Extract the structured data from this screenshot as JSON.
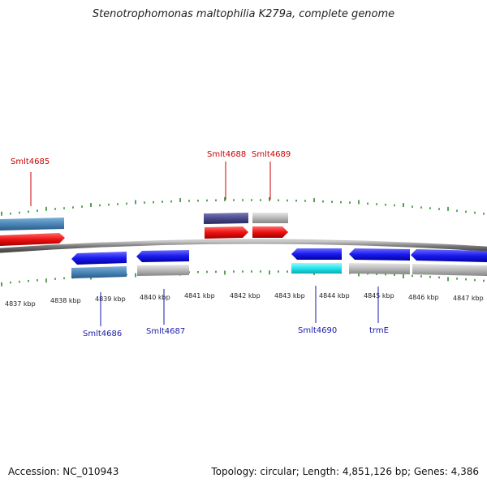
{
  "title": "Stenotrophomonas maltophilia K279a, complete genome",
  "footer": {
    "accession": "Accession: NC_010943",
    "summary": "Topology: circular; Length: 4,851,126 bp; Genes: 4,386"
  },
  "colors": {
    "forward_label": "#cc0000",
    "reverse_label": "#1a1aaa",
    "tick": "#2e8b2e",
    "backbone": "#808080"
  },
  "kbp_ticks": [
    "4837 kbp",
    "4838 kbp",
    "4839 kbp",
    "4840 kbp",
    "4841 kbp",
    "4842 kbp",
    "4843 kbp",
    "4844 kbp",
    "4845 kbp",
    "4846 kbp",
    "4847 kbp"
  ],
  "gene_labels": {
    "forward": [
      "Smlt4685",
      "Smlt4688",
      "Smlt4689"
    ],
    "reverse": [
      "Smlt4686",
      "Smlt4687",
      "Smlt4690",
      "trmE"
    ]
  },
  "feature_colors": {
    "forward_cds": "#ee1111",
    "reverse_cds": "#1a1aee",
    "steelblue": "#4a86b8",
    "slate": "#4a4a8c",
    "grey": "#b8b8b8",
    "cyan": "#22e5ee"
  }
}
